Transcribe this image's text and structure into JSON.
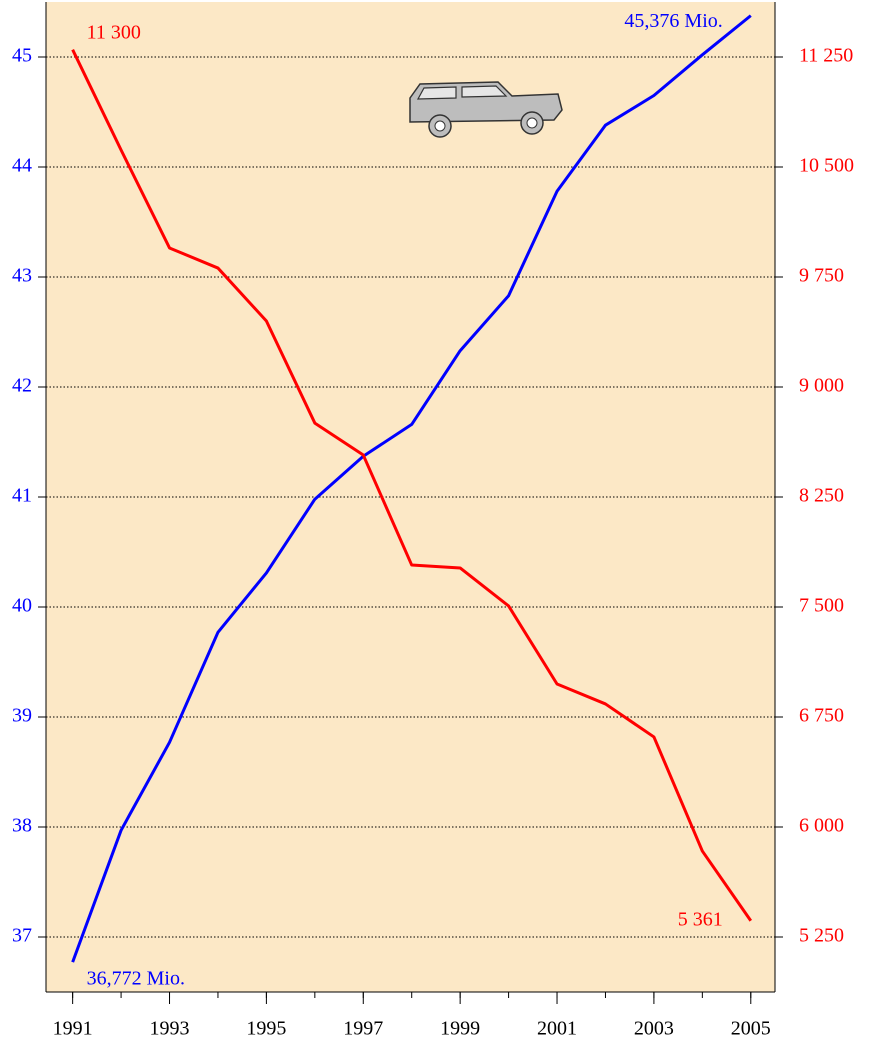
{
  "chart_data": {
    "type": "line",
    "x": [
      1991,
      1992,
      1993,
      1994,
      1995,
      1996,
      1997,
      1998,
      1999,
      2000,
      2001,
      2002,
      2003,
      2004,
      2005
    ],
    "xlim": [
      1990.45,
      2005.5
    ],
    "xticks": [
      1991,
      1993,
      1995,
      1997,
      1999,
      2001,
      2003,
      2005
    ],
    "ylim": [
      36.5,
      45.5
    ],
    "yticks": [
      37,
      38,
      39,
      40,
      41,
      42,
      43,
      44,
      45
    ],
    "y2lim": [
      4875,
      11625
    ],
    "y2ticks": [
      {
        "value": 5250,
        "label": "5 250"
      },
      {
        "value": 6000,
        "label": "6 000"
      },
      {
        "value": 6750,
        "label": "6 750"
      },
      {
        "value": 7500,
        "label": "7 500"
      },
      {
        "value": 8250,
        "label": "8 250"
      },
      {
        "value": 9000,
        "label": "9 000"
      },
      {
        "value": 9750,
        "label": "9 750"
      },
      {
        "value": 10500,
        "label": "10 500"
      },
      {
        "value": 11250,
        "label": "11 250"
      }
    ],
    "grid": true,
    "background": "#fce8c6",
    "series": [
      {
        "color": "#0000ff",
        "values": [
          36.772,
          37.97,
          38.77,
          39.77,
          40.31,
          40.98,
          41.37,
          41.66,
          42.33,
          42.83,
          43.78,
          44.38,
          44.65,
          45.02,
          45.376
        ],
        "value_labels": [
          "36,772 Mio.",
          null,
          null,
          null,
          null,
          null,
          null,
          null,
          null,
          null,
          null,
          null,
          null,
          null,
          "45,376 Mio."
        ]
      },
      {
        "color": "#ff0000",
        "axis": "y2",
        "values": [
          11300,
          10616,
          9948,
          9811,
          9450,
          8754,
          8536,
          7786,
          7766,
          7507,
          6975,
          6839,
          6614,
          5836,
          5361
        ],
        "value_labels": [
          "11 300",
          null,
          null,
          null,
          null,
          null,
          null,
          null,
          null,
          null,
          null,
          null,
          null,
          null,
          "5 361"
        ]
      }
    ]
  }
}
